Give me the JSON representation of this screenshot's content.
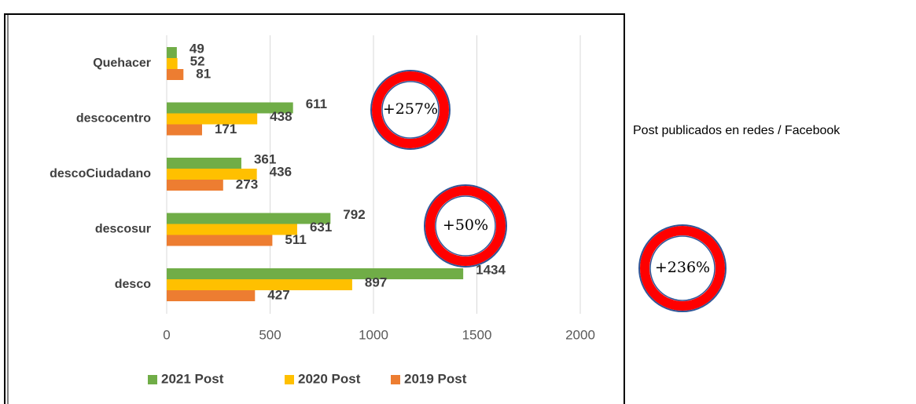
{
  "chart_data": {
    "type": "hbar",
    "categories": [
      "Quehacer",
      "descocentro",
      "descoCiudadano",
      "descosur",
      "desco"
    ],
    "series": [
      {
        "name": "2021 Post",
        "color": "#70ad47",
        "values": [
          49,
          611,
          361,
          792,
          1434
        ]
      },
      {
        "name": "2020 Post",
        "color": "#ffc000",
        "values": [
          52,
          438,
          436,
          631,
          897
        ]
      },
      {
        "name": "2019 Post",
        "color": "#ed7d31",
        "values": [
          81,
          171,
          273,
          511,
          427
        ]
      }
    ],
    "xlim": [
      0,
      2000
    ],
    "xticks": [
      0,
      500,
      1000,
      1500,
      2000
    ],
    "grid": true,
    "legend": "bottom",
    "annotations": [
      "+257%",
      "+50%",
      "+236%"
    ],
    "note": "Post publicados en redes / Facebook"
  }
}
